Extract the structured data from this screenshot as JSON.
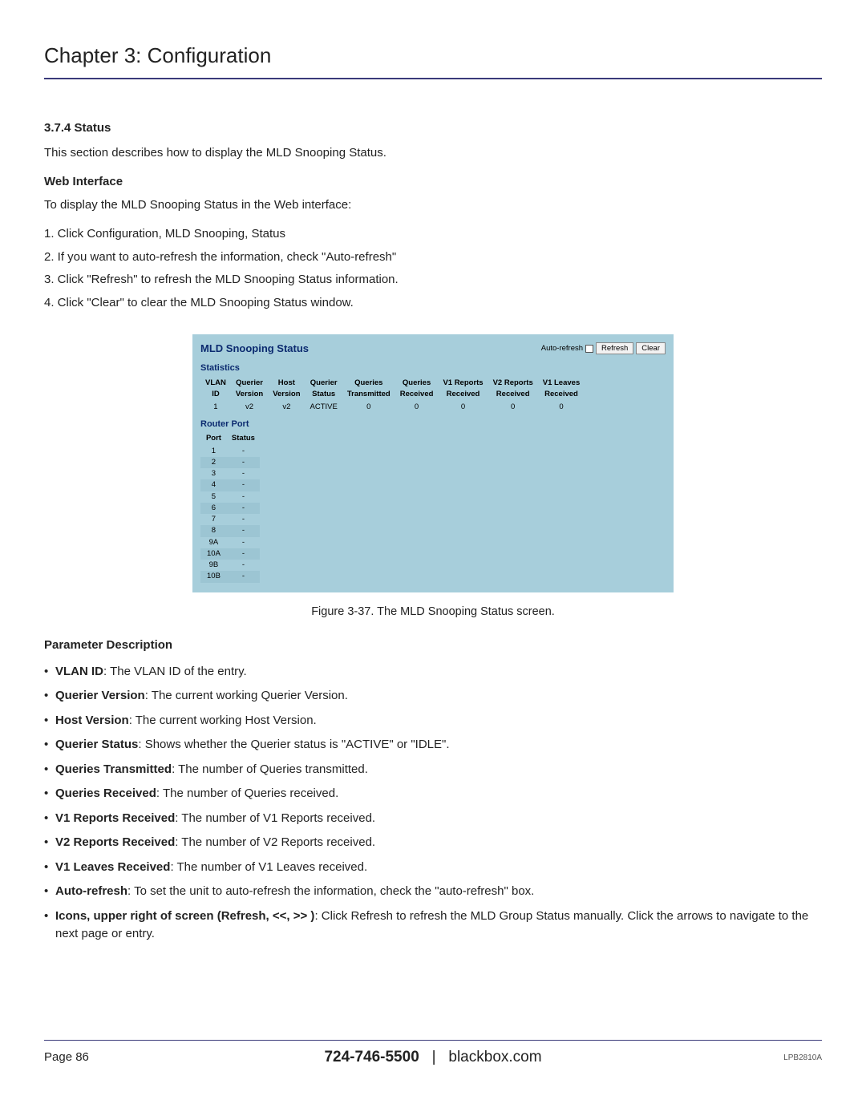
{
  "chapter_title": "Chapter 3: Configuration",
  "section": {
    "num": "3.7.4 Status",
    "intro": "This section describes how to display the MLD Snooping Status.",
    "subhead": "Web Interface",
    "lead": "To display the MLD Snooping Status in the Web interface:",
    "steps": [
      "1. Click Configuration, MLD Snooping, Status",
      "2. If you want to auto-refresh the information, check \"Auto-refresh\"",
      "3. Click \"Refresh\" to refresh the MLD Snooping Status information.",
      "4. Click \"Clear\" to clear the MLD Snooping Status window."
    ]
  },
  "screenshot": {
    "title": "MLD Snooping Status",
    "auto_refresh_label": "Auto-refresh",
    "refresh_btn": "Refresh",
    "clear_btn": "Clear",
    "stats_label": "Statistics",
    "stats_headers": [
      "VLAN\nID",
      "Querier\nVersion",
      "Host\nVersion",
      "Querier\nStatus",
      "Queries\nTransmitted",
      "Queries\nReceived",
      "V1 Reports\nReceived",
      "V2 Reports\nReceived",
      "V1 Leaves\nReceived"
    ],
    "stats_row": [
      "1",
      "v2",
      "v2",
      "ACTIVE",
      "0",
      "0",
      "0",
      "0",
      "0"
    ],
    "router_label": "Router Port",
    "router_headers": [
      "Port",
      "Status"
    ],
    "router_rows": [
      [
        "1",
        "-"
      ],
      [
        "2",
        "-"
      ],
      [
        "3",
        "-"
      ],
      [
        "4",
        "-"
      ],
      [
        "5",
        "-"
      ],
      [
        "6",
        "-"
      ],
      [
        "7",
        "-"
      ],
      [
        "8",
        "-"
      ],
      [
        "9A",
        "-"
      ],
      [
        "10A",
        "-"
      ],
      [
        "9B",
        "-"
      ],
      [
        "10B",
        "-"
      ]
    ],
    "bg_color": "#a7cedb",
    "alt_row_color": "#9cc5d3"
  },
  "figure_caption": "Figure 3-37. The MLD Snooping Status screen.",
  "param_desc_head": "Parameter Description",
  "params": [
    {
      "label": "VLAN ID",
      "text": ": The VLAN ID of the entry."
    },
    {
      "label": "Querier Version",
      "text": ": The current working Querier Version."
    },
    {
      "label": "Host Version",
      "text": ": The current working Host Version."
    },
    {
      "label": "Querier Status",
      "text": ": Shows whether the Querier status is \"ACTIVE\" or \"IDLE\"."
    },
    {
      "label": "Queries Transmitted",
      "text": ": The number of Queries transmitted."
    },
    {
      "label": "Queries Received",
      "text": ": The number of Queries received."
    },
    {
      "label": "V1 Reports Received",
      "text": ": The number of V1 Reports received."
    },
    {
      "label": "V2 Reports Received",
      "text": ": The number of V2 Reports received."
    },
    {
      "label": "V1 Leaves Received",
      "text": ": The number of V1 Leaves received."
    },
    {
      "label": "Auto-refresh",
      "text": ": To set the unit to auto-refresh the information, check the \"auto-refresh\" box."
    },
    {
      "label": "Icons, upper right of screen (Refresh, <<, >> )",
      "text": ": Click Refresh to refresh the MLD Group Status manually. Click the arrows to navigate to the next page or entry."
    }
  ],
  "footer": {
    "page": "Page 86",
    "phone": "724-746-5500",
    "sep": "|",
    "site": "blackbox.com",
    "model": "LPB2810A"
  }
}
